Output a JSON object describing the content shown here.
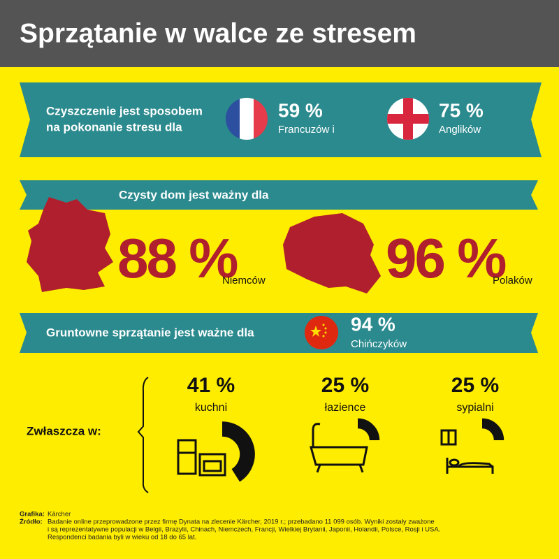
{
  "header": {
    "title": "Sprzątanie w walce ze stresem"
  },
  "stress": {
    "lines": [
      "Czyszczenie jest sposobem",
      "na pokonanie stresu dla"
    ],
    "items": [
      {
        "percent": "59 %",
        "label": "Francuzów i"
      },
      {
        "percent": "75 %",
        "label": "Anglików"
      }
    ]
  },
  "clean_home": {
    "text": "Czysty dom jest ważny dla",
    "items": [
      {
        "percent": "88 %",
        "label": "Niemców"
      },
      {
        "percent": "96 %",
        "label": "Polaków"
      }
    ]
  },
  "deep_cleaning": {
    "text": "Gruntowne sprzątanie jest ważne dla",
    "percent": "94 %",
    "label": "Chińczyków"
  },
  "rooms": {
    "label": "Zwłaszcza w:",
    "items": [
      {
        "value": 41,
        "label": "41 %",
        "name": "kuchni"
      },
      {
        "value": 25,
        "label": "25 %",
        "name": "łazience"
      },
      {
        "value": 25,
        "label": "25 %",
        "name": "sypialni"
      }
    ]
  },
  "footer": {
    "graphic_label": "Grafika:",
    "graphic": "Kärcher",
    "source_label": "Źródło:",
    "source_lines": [
      "Badanie online przeprowadzone przez firmę Dynata na zlecenie Kärcher, 2019 r.; przebadano 11 099 osób. Wyniki zostały zważone",
      "i są reprezentatywne populacji w Belgii, Brazylii, Chinach, Niemczech, Francji, Wielkiej Brytanii, Japonii, Holandii, Polsce, Rosji i USA.",
      "Respondenci badania byli w wieku od 18 do 65 lat."
    ]
  }
}
